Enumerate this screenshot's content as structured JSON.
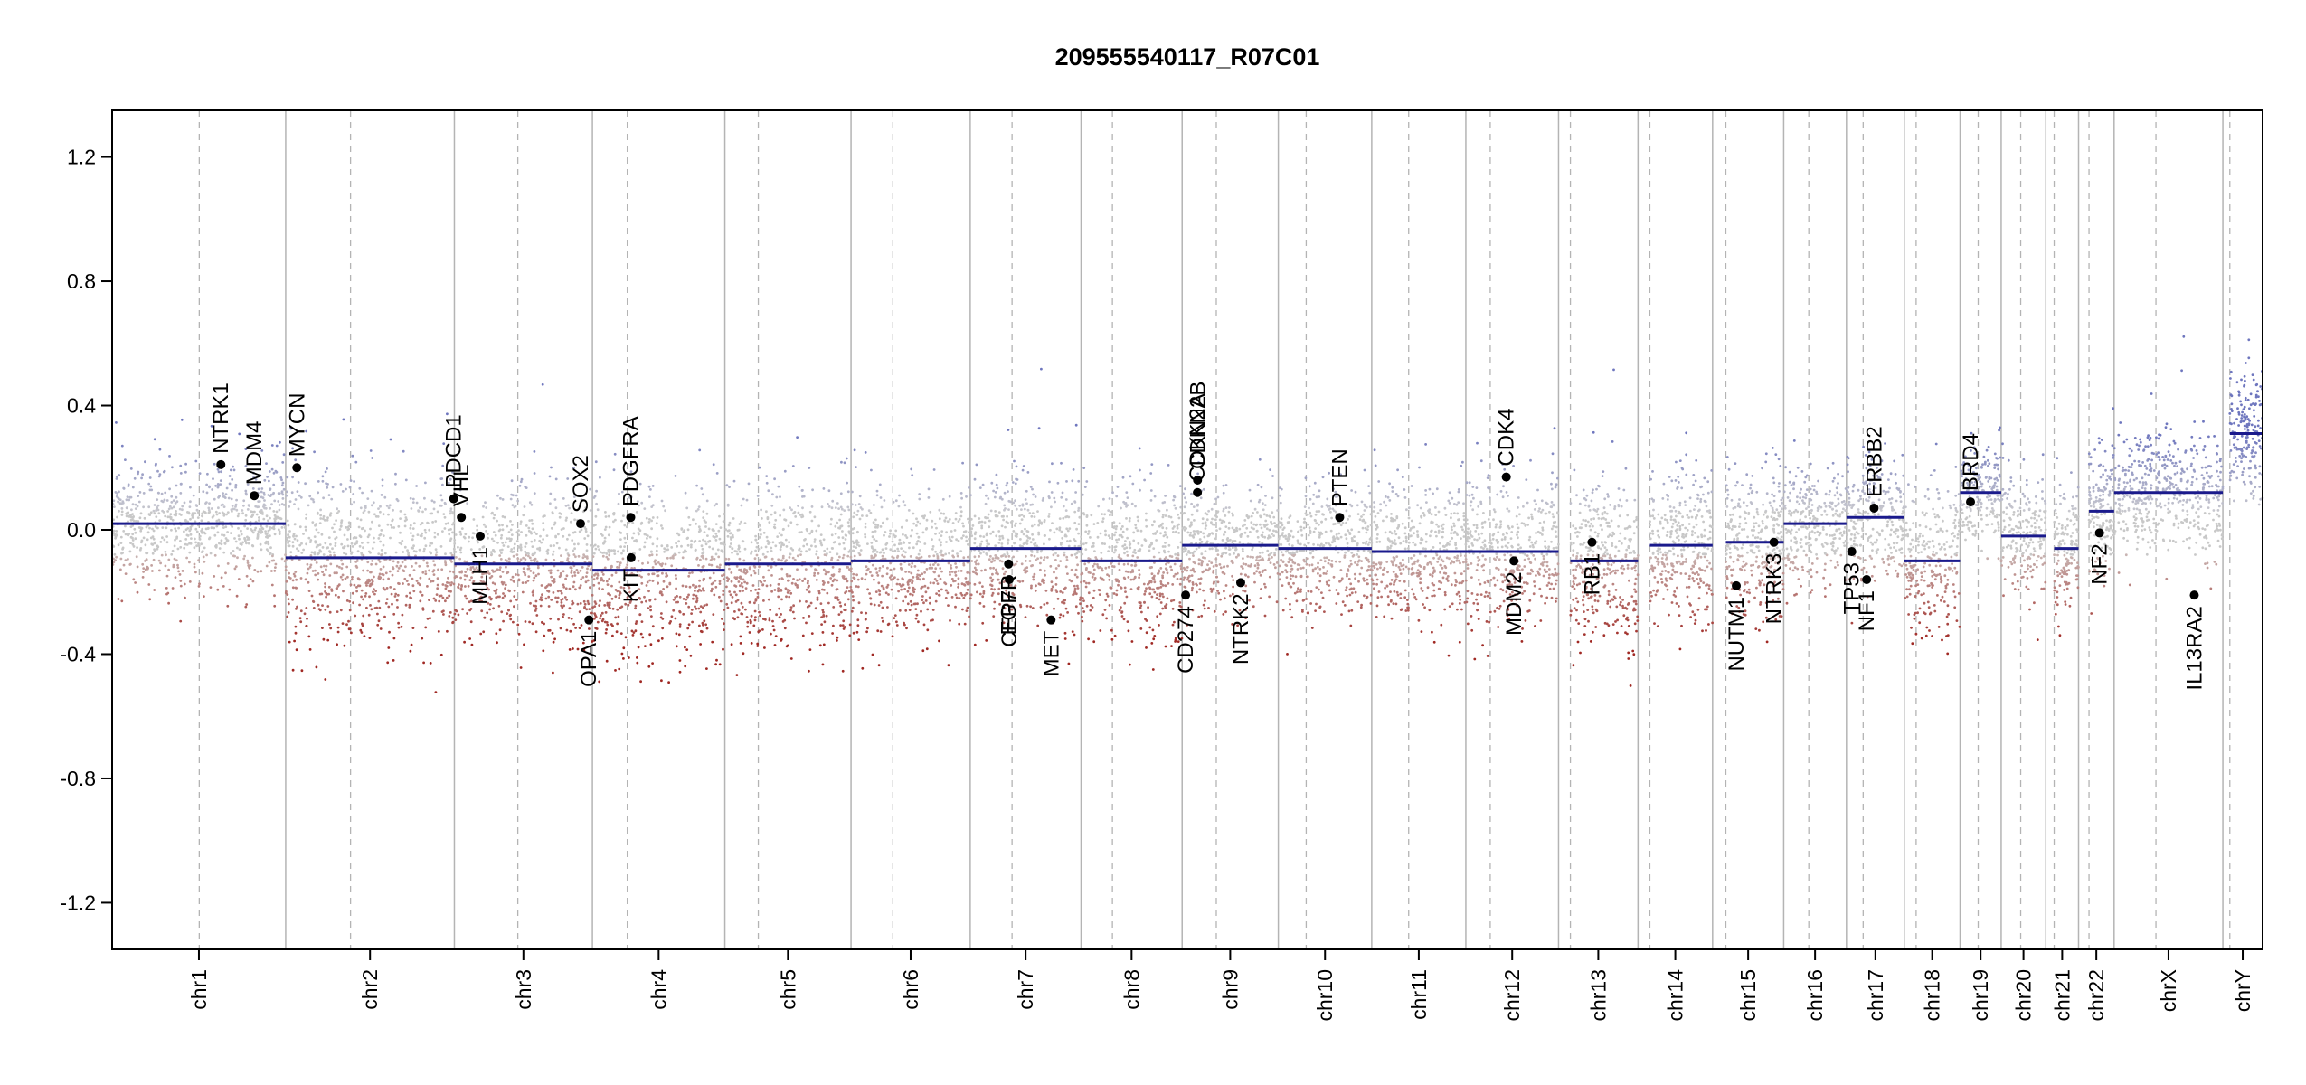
{
  "chart_data": {
    "type": "scatter",
    "title": "209555540117_R07C01",
    "xlabel": "",
    "ylabel": "",
    "ylim": [
      -1.35,
      1.35
    ],
    "y_ticks": [
      1.2,
      0.8,
      0.4,
      0.0,
      -0.4,
      -0.8,
      -1.2
    ],
    "y_tick_labels": [
      "1.2",
      "0.8",
      "0.4",
      "0.0",
      "-0.4",
      "-0.8",
      "-1.2"
    ],
    "x_unit": "Mb",
    "grid": "vertical chromosome boundaries (solid) and centromeres (dashed)",
    "colors": {
      "gain": "#7f86c4",
      "neutral": "#c8c8c8",
      "loss": "#a8322d",
      "segment": "#1a1a8c",
      "gene_point": "#000000",
      "boundary": "#b4b4b4"
    },
    "chromosomes": [
      {
        "name": "chr1",
        "length": 249,
        "centromere": 125
      },
      {
        "name": "chr2",
        "length": 242,
        "centromere": 93
      },
      {
        "name": "chr3",
        "length": 198,
        "centromere": 91
      },
      {
        "name": "chr4",
        "length": 190,
        "centromere": 50
      },
      {
        "name": "chr5",
        "length": 181,
        "centromere": 48
      },
      {
        "name": "chr6",
        "length": 171,
        "centromere": 60
      },
      {
        "name": "chr7",
        "length": 159,
        "centromere": 60
      },
      {
        "name": "chr8",
        "length": 145,
        "centromere": 45
      },
      {
        "name": "chr9",
        "length": 138,
        "centromere": 49
      },
      {
        "name": "chr10",
        "length": 134,
        "centromere": 40
      },
      {
        "name": "chr11",
        "length": 135,
        "centromere": 53
      },
      {
        "name": "chr12",
        "length": 133,
        "centromere": 35
      },
      {
        "name": "chr13",
        "length": 114,
        "centromere": 17
      },
      {
        "name": "chr14",
        "length": 107,
        "centromere": 17
      },
      {
        "name": "chr15",
        "length": 102,
        "centromere": 19
      },
      {
        "name": "chr16",
        "length": 90,
        "centromere": 36
      },
      {
        "name": "chr17",
        "length": 83,
        "centromere": 24
      },
      {
        "name": "chr18",
        "length": 80,
        "centromere": 17
      },
      {
        "name": "chr19",
        "length": 59,
        "centromere": 26
      },
      {
        "name": "chr20",
        "length": 64,
        "centromere": 28
      },
      {
        "name": "chr21",
        "length": 47,
        "centromere": 12
      },
      {
        "name": "chr22",
        "length": 51,
        "centromere": 15
      },
      {
        "name": "chrX",
        "length": 156,
        "centromere": 60
      },
      {
        "name": "chrY",
        "length": 57,
        "centromere": 10
      }
    ],
    "segments": [
      {
        "chrom": "chr1",
        "start": 0,
        "end": 249,
        "value": 0.02
      },
      {
        "chrom": "chr2",
        "start": 0,
        "end": 242,
        "value": -0.09
      },
      {
        "chrom": "chr3",
        "start": 0,
        "end": 30,
        "value": -0.11
      },
      {
        "chrom": "chr3",
        "start": 30,
        "end": 198,
        "value": -0.11
      },
      {
        "chrom": "chr4",
        "start": 0,
        "end": 190,
        "value": -0.13
      },
      {
        "chrom": "chr5",
        "start": 0,
        "end": 181,
        "value": -0.11
      },
      {
        "chrom": "chr6",
        "start": 0,
        "end": 171,
        "value": -0.1
      },
      {
        "chrom": "chr7",
        "start": 0,
        "end": 159,
        "value": -0.06
      },
      {
        "chrom": "chr8",
        "start": 0,
        "end": 145,
        "value": -0.1
      },
      {
        "chrom": "chr9",
        "start": 0,
        "end": 138,
        "value": -0.05
      },
      {
        "chrom": "chr10",
        "start": 0,
        "end": 134,
        "value": -0.06
      },
      {
        "chrom": "chr11",
        "start": 0,
        "end": 135,
        "value": -0.07
      },
      {
        "chrom": "chr12",
        "start": 0,
        "end": 133,
        "value": -0.07
      },
      {
        "chrom": "chr13",
        "start": 17,
        "end": 114,
        "value": -0.1
      },
      {
        "chrom": "chr14",
        "start": 17,
        "end": 107,
        "value": -0.05
      },
      {
        "chrom": "chr15",
        "start": 19,
        "end": 102,
        "value": -0.04
      },
      {
        "chrom": "chr16",
        "start": 0,
        "end": 90,
        "value": 0.02
      },
      {
        "chrom": "chr17",
        "start": 0,
        "end": 83,
        "value": 0.04
      },
      {
        "chrom": "chr18",
        "start": 0,
        "end": 80,
        "value": -0.1
      },
      {
        "chrom": "chr19",
        "start": 0,
        "end": 59,
        "value": 0.12
      },
      {
        "chrom": "chr20",
        "start": 0,
        "end": 64,
        "value": -0.02
      },
      {
        "chrom": "chr21",
        "start": 12,
        "end": 47,
        "value": -0.06
      },
      {
        "chrom": "chr22",
        "start": 15,
        "end": 51,
        "value": 0.06
      },
      {
        "chrom": "chrX",
        "start": 0,
        "end": 156,
        "value": 0.12
      },
      {
        "chrom": "chrY",
        "start": 10,
        "end": 57,
        "value": 0.31
      }
    ],
    "chrom_noise": {
      "chr1": 0.1,
      "chr2": 0.14,
      "chr3": 0.12,
      "chr4": 0.14,
      "chr5": 0.13,
      "chr6": 0.12,
      "chr7": 0.12,
      "chr8": 0.12,
      "chr9": 0.1,
      "chr10": 0.1,
      "chr11": 0.11,
      "chr12": 0.12,
      "chr13": 0.13,
      "chr14": 0.12,
      "chr15": 0.11,
      "chr16": 0.1,
      "chr17": 0.1,
      "chr18": 0.12,
      "chr19": 0.08,
      "chr20": 0.1,
      "chr21": 0.1,
      "chr22": 0.1,
      "chrX": 0.1,
      "chrY": 0.1
    },
    "genes": [
      {
        "name": "NTRK1",
        "chrom": "chr1",
        "pos": 156,
        "value": 0.21,
        "label_side": "above"
      },
      {
        "name": "MDM4",
        "chrom": "chr1",
        "pos": 204,
        "value": 0.11,
        "label_side": "above"
      },
      {
        "name": "MYCN",
        "chrom": "chr2",
        "pos": 16,
        "value": 0.2,
        "label_side": "above"
      },
      {
        "name": "PDCD1",
        "chrom": "chr2",
        "pos": 241,
        "value": 0.1,
        "label_side": "above"
      },
      {
        "name": "VHL",
        "chrom": "chr3",
        "pos": 10,
        "value": 0.04,
        "label_side": "above"
      },
      {
        "name": "MLH1",
        "chrom": "chr3",
        "pos": 37,
        "value": -0.02,
        "label_side": "below"
      },
      {
        "name": "SOX2",
        "chrom": "chr3",
        "pos": 181,
        "value": 0.02,
        "label_side": "above"
      },
      {
        "name": "OPA1",
        "chrom": "chr3",
        "pos": 193,
        "value": -0.29,
        "label_side": "below"
      },
      {
        "name": "PDGFRA",
        "chrom": "chr4",
        "pos": 55,
        "value": 0.04,
        "label_side": "above"
      },
      {
        "name": "KIT",
        "chrom": "chr4",
        "pos": 55.5,
        "value": -0.09,
        "label_side": "below"
      },
      {
        "name": "EGFR",
        "chrom": "chr7",
        "pos": 55,
        "value": -0.11,
        "label_side": "below"
      },
      {
        "name": "CEP7",
        "chrom": "chr7",
        "pos": 56,
        "value": -0.16,
        "label_side": "below"
      },
      {
        "name": "MET",
        "chrom": "chr7",
        "pos": 116,
        "value": -0.29,
        "label_side": "below"
      },
      {
        "name": "CD274",
        "chrom": "chr9",
        "pos": 5,
        "value": -0.21,
        "label_side": "below"
      },
      {
        "name": "CDKN2A",
        "chrom": "chr9",
        "pos": 21.9,
        "value": 0.12,
        "label_side": "above"
      },
      {
        "name": "CDKN2B",
        "chrom": "chr9",
        "pos": 22.1,
        "value": 0.16,
        "label_side": "above"
      },
      {
        "name": "NTRK2",
        "chrom": "chr9",
        "pos": 84,
        "value": -0.17,
        "label_side": "below"
      },
      {
        "name": "PTEN",
        "chrom": "chr10",
        "pos": 88,
        "value": 0.04,
        "label_side": "above"
      },
      {
        "name": "CDK4",
        "chrom": "chr12",
        "pos": 58,
        "value": 0.17,
        "label_side": "above"
      },
      {
        "name": "MDM2",
        "chrom": "chr12",
        "pos": 69,
        "value": -0.1,
        "label_side": "below"
      },
      {
        "name": "RB1",
        "chrom": "chr13",
        "pos": 48,
        "value": -0.04,
        "label_side": "below"
      },
      {
        "name": "NUTM1",
        "chrom": "chr15",
        "pos": 34,
        "value": -0.18,
        "label_side": "below"
      },
      {
        "name": "NTRK3",
        "chrom": "chr15",
        "pos": 88,
        "value": -0.04,
        "label_side": "below"
      },
      {
        "name": "TP53",
        "chrom": "chr17",
        "pos": 7.6,
        "value": -0.07,
        "label_side": "below"
      },
      {
        "name": "NF1",
        "chrom": "chr17",
        "pos": 29,
        "value": -0.16,
        "label_side": "below"
      },
      {
        "name": "ERBB2",
        "chrom": "chr17",
        "pos": 39.7,
        "value": 0.07,
        "label_side": "above"
      },
      {
        "name": "BRD4",
        "chrom": "chr19",
        "pos": 15,
        "value": 0.09,
        "label_side": "above"
      },
      {
        "name": "NF2",
        "chrom": "chr22",
        "pos": 30,
        "value": -0.01,
        "label_side": "below"
      },
      {
        "name": "IL13RA2",
        "chrom": "chrX",
        "pos": 115,
        "value": -0.21,
        "label_side": "below"
      }
    ]
  }
}
